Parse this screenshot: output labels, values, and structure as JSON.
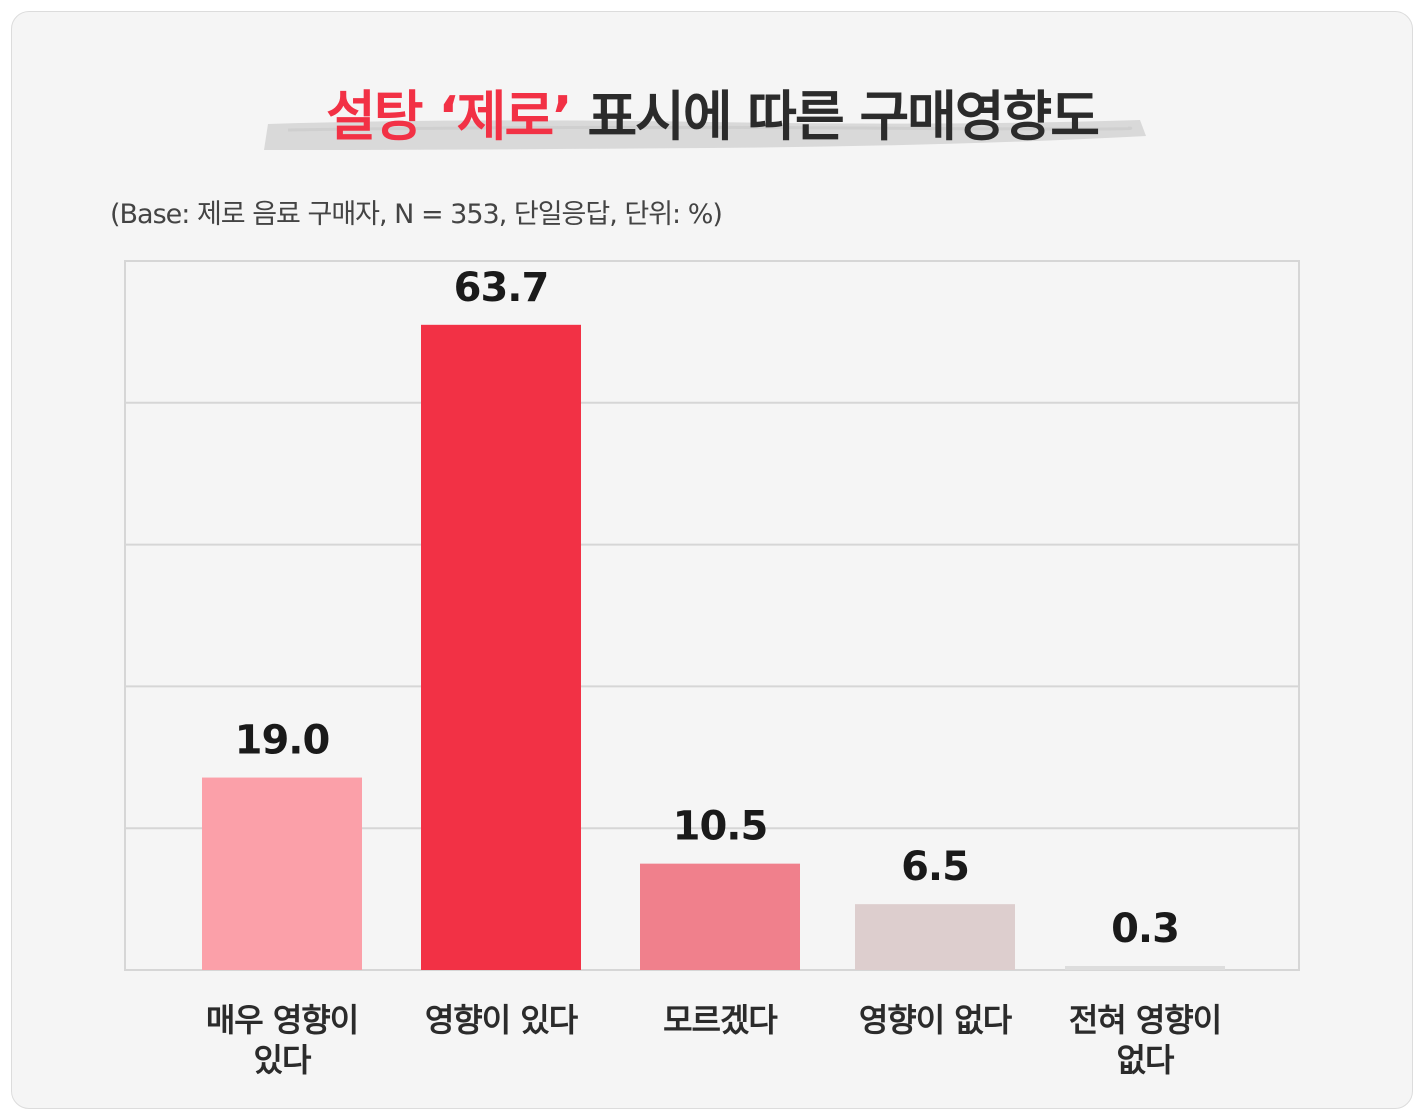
{
  "title": {
    "accent": "설탕 ‘제로’",
    "rest": " 표시에 따른 구매영향도"
  },
  "subtitle": "(Base: 제로 음료 구매자, N = 353, 단일응답, 단위: %)",
  "chart_data": {
    "type": "bar",
    "categories": [
      "매우 영향이 있다",
      "영향이 있다",
      "모르겠다",
      "영향이 없다",
      "전혀 영향이 없다"
    ],
    "values": [
      19.0,
      63.7,
      10.5,
      6.5,
      0.3
    ],
    "value_labels": [
      "19.0",
      "63.7",
      "10.5",
      "6.5",
      "0.3"
    ],
    "bar_colors": [
      "#fba0a9",
      "#f23145",
      "#f0808c",
      "#ddcece",
      "#dddddd"
    ],
    "ylim": [
      0,
      70
    ],
    "grid": true,
    "xlabel": "",
    "ylabel": ""
  }
}
